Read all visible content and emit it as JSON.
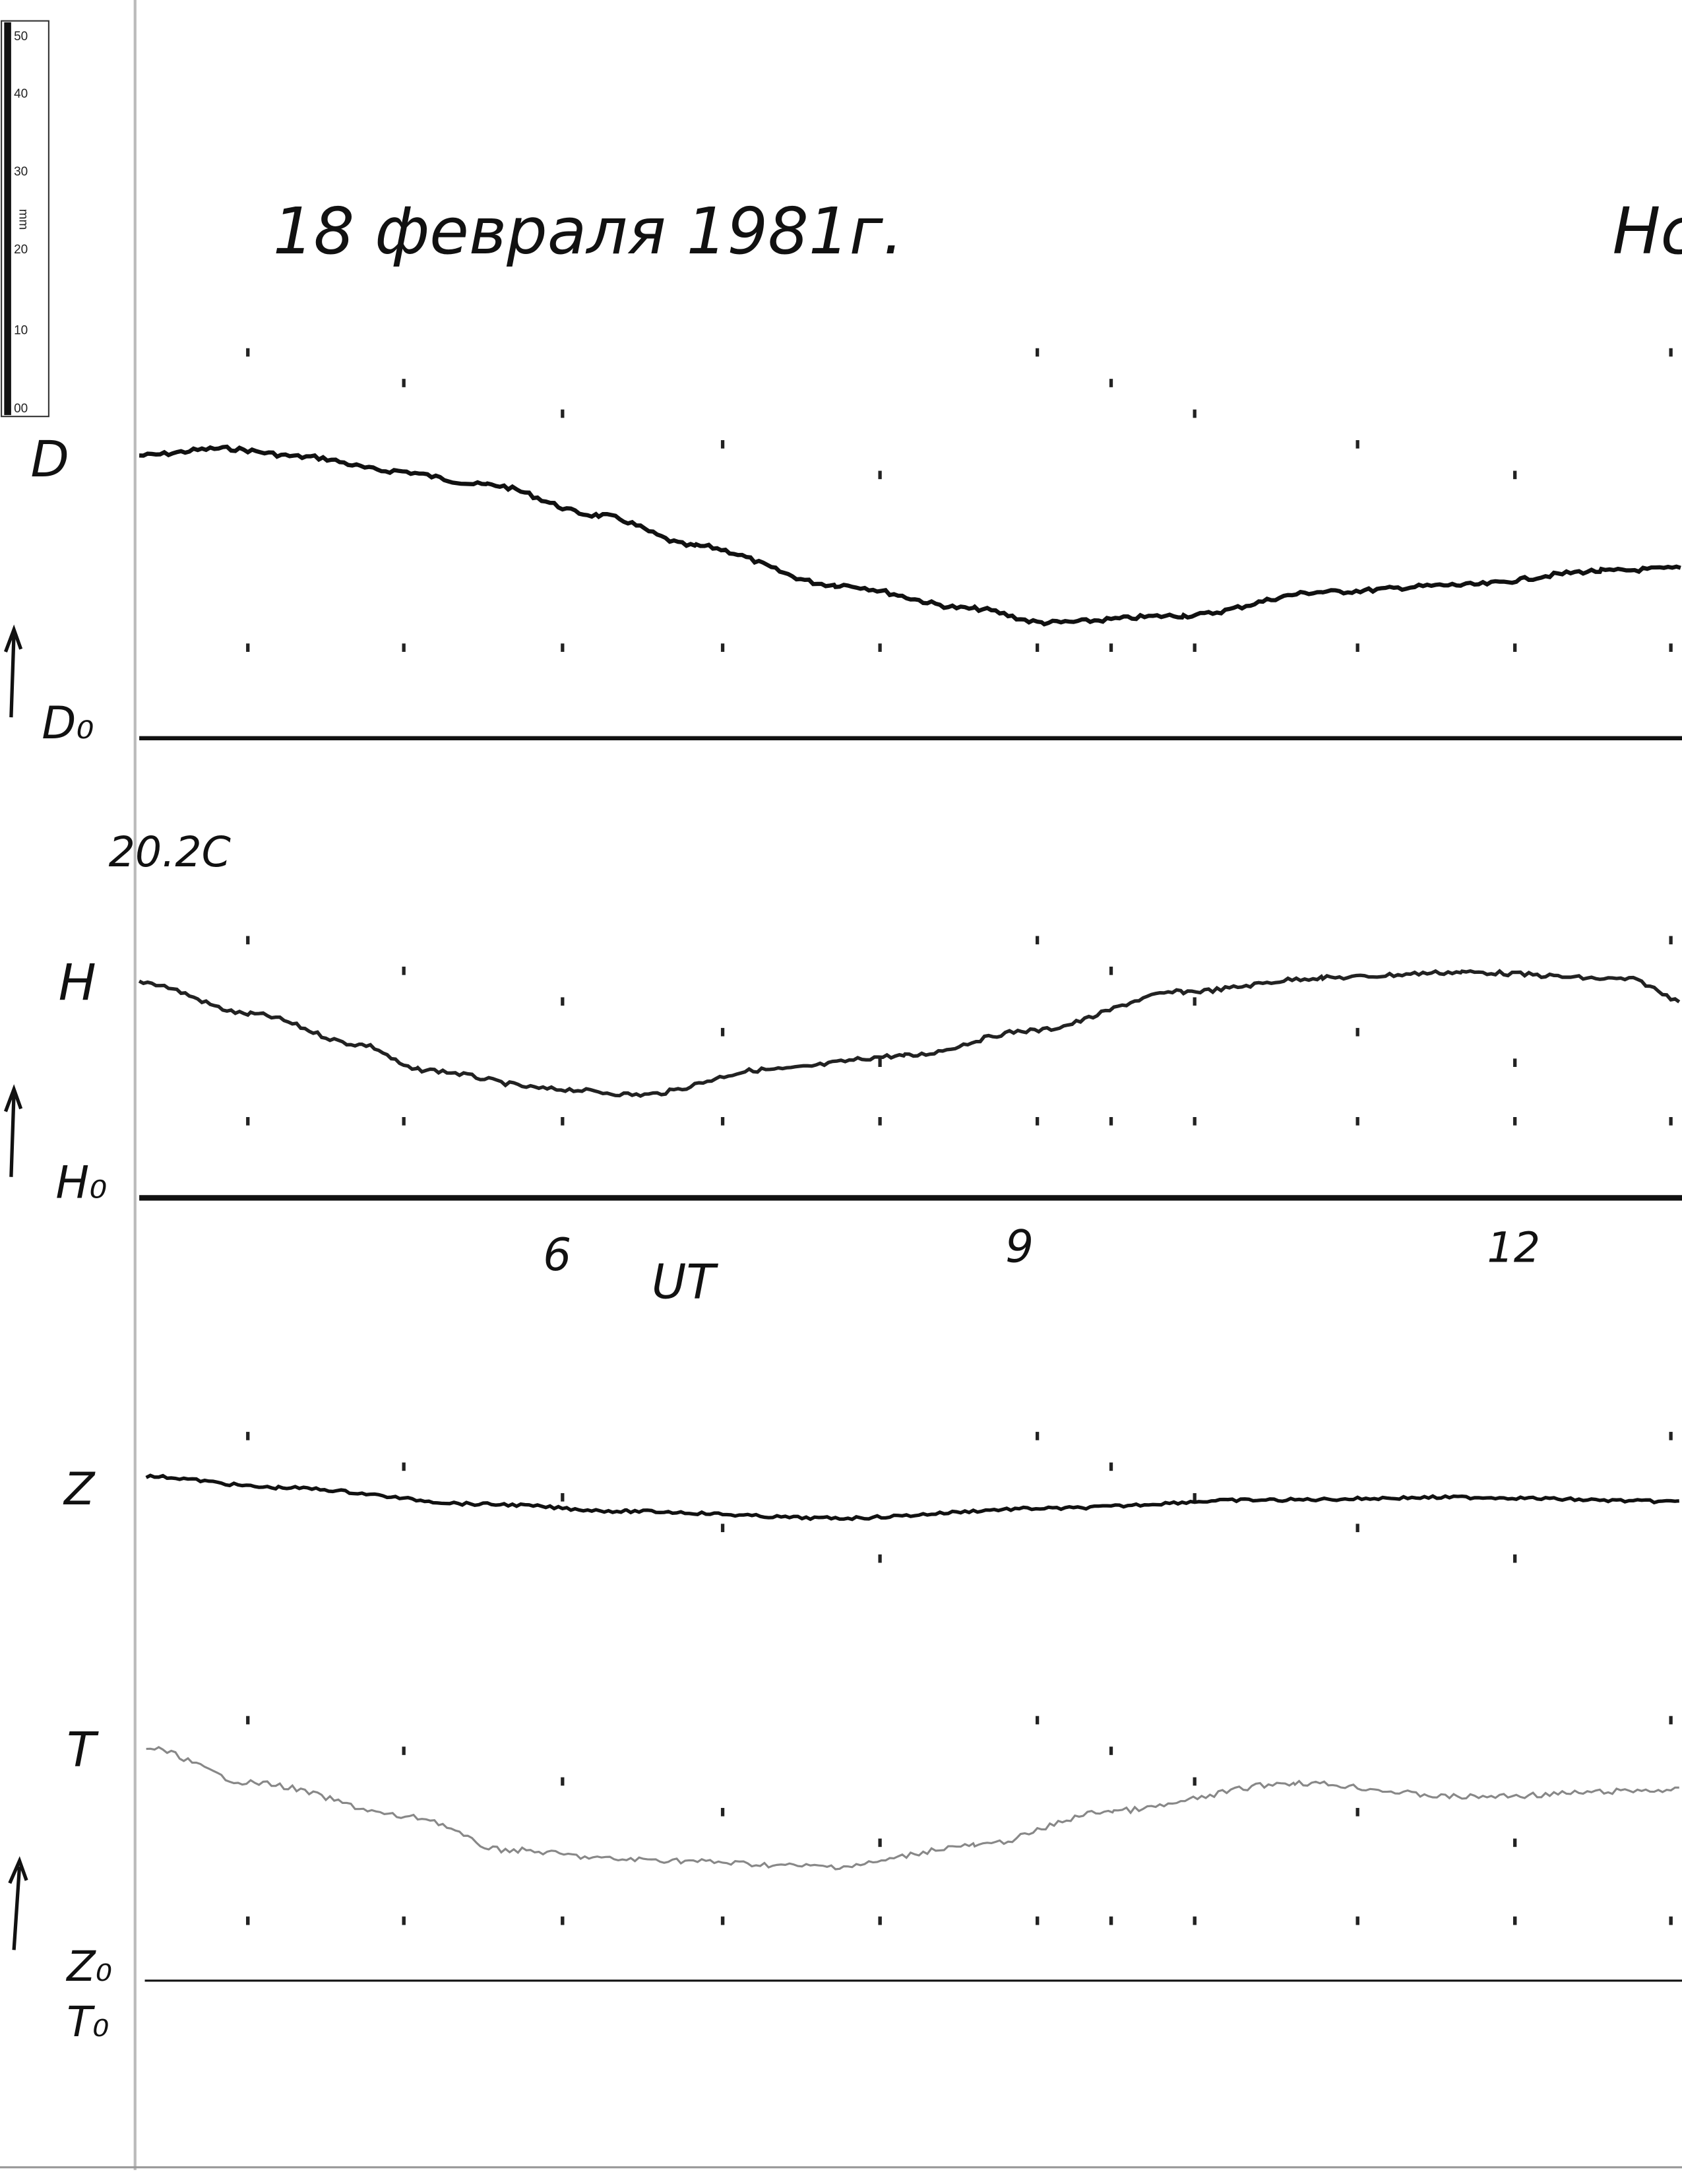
{
  "scale_ruler": {
    "labels": [
      "50",
      "40",
      "30",
      "20",
      "10",
      "00"
    ],
    "unit": "mm"
  },
  "header": {
    "title": "18 февраля 1981г.",
    "station": "Нс"
  },
  "traces": [
    {
      "label": "D",
      "baseline": "D₀"
    },
    {
      "label": "H",
      "baseline": "H₀"
    },
    {
      "label": "Z",
      "baseline": "Z₀"
    },
    {
      "label": "T",
      "baseline": "T₀"
    }
  ],
  "annotations": {
    "temperature": "20.2C"
  },
  "time_axis": {
    "labels": [
      "6",
      "9",
      "12"
    ],
    "title": "UT"
  }
}
